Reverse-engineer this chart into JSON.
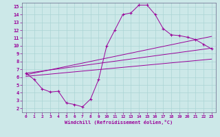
{
  "xlabel": "Windchill (Refroidissement éolien,°C)",
  "bg_color": "#cce8e8",
  "line_color": "#990099",
  "grid_color": "#aad4d4",
  "xlim": [
    -0.5,
    23.5
  ],
  "ylim": [
    1.5,
    15.5
  ],
  "xticks": [
    0,
    1,
    2,
    3,
    4,
    5,
    6,
    7,
    8,
    9,
    10,
    11,
    12,
    13,
    14,
    15,
    16,
    17,
    18,
    19,
    20,
    21,
    22,
    23
  ],
  "yticks": [
    2,
    3,
    4,
    5,
    6,
    7,
    8,
    9,
    10,
    11,
    12,
    13,
    14,
    15
  ],
  "curve_x": [
    0,
    1,
    2,
    3,
    4,
    5,
    6,
    7,
    8,
    9,
    10,
    11,
    12,
    13,
    14,
    15,
    16,
    17,
    18,
    19,
    20,
    21,
    22,
    23
  ],
  "curve_y": [
    6.5,
    5.7,
    4.5,
    4.1,
    4.2,
    2.7,
    2.5,
    2.2,
    3.2,
    5.7,
    10.0,
    12.0,
    14.0,
    14.2,
    15.2,
    15.2,
    14.0,
    12.2,
    11.4,
    11.3,
    11.1,
    10.8,
    10.2,
    9.6
  ],
  "line1_x": [
    0,
    23
  ],
  "line1_y": [
    6.5,
    9.7
  ],
  "line2_x": [
    0,
    23
  ],
  "line2_y": [
    6.3,
    11.2
  ],
  "line3_x": [
    0,
    23
  ],
  "line3_y": [
    6.1,
    8.3
  ]
}
